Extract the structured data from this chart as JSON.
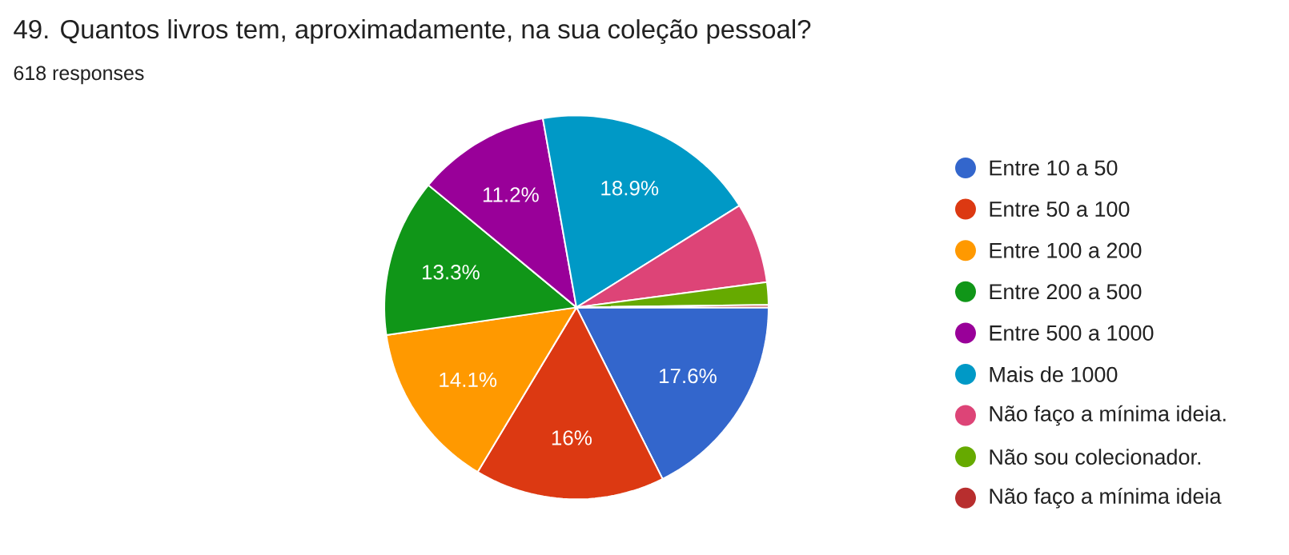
{
  "chart_data": {
    "type": "pie",
    "title": "49. Quantos livros tem, aproximadamente, na sua coleção pessoal?",
    "subtitle": "618 responses",
    "categories": [
      "Entre 10 a 50",
      "Entre 50 a 100",
      "Entre 100 a 200",
      "Entre 200 a 500",
      "Entre 500 a 1000",
      "Mais de 1000",
      "Não faço a mínima ideia.",
      "Não sou colecionador.",
      "Não faço a mínima ideia"
    ],
    "values": [
      17.6,
      16,
      14.1,
      13.3,
      11.2,
      18.9,
      6.8,
      1.9,
      0.2
    ],
    "colors": [
      "#3366cc",
      "#dc3912",
      "#ff9900",
      "#109618",
      "#990099",
      "#0099c6",
      "#dd4477",
      "#66aa00",
      "#b82e2e"
    ],
    "value_labels": [
      "17.6%",
      "16%",
      "14.1%",
      "13.3%",
      "11.2%",
      "18.9%",
      null,
      null,
      null
    ],
    "legend": "right"
  }
}
